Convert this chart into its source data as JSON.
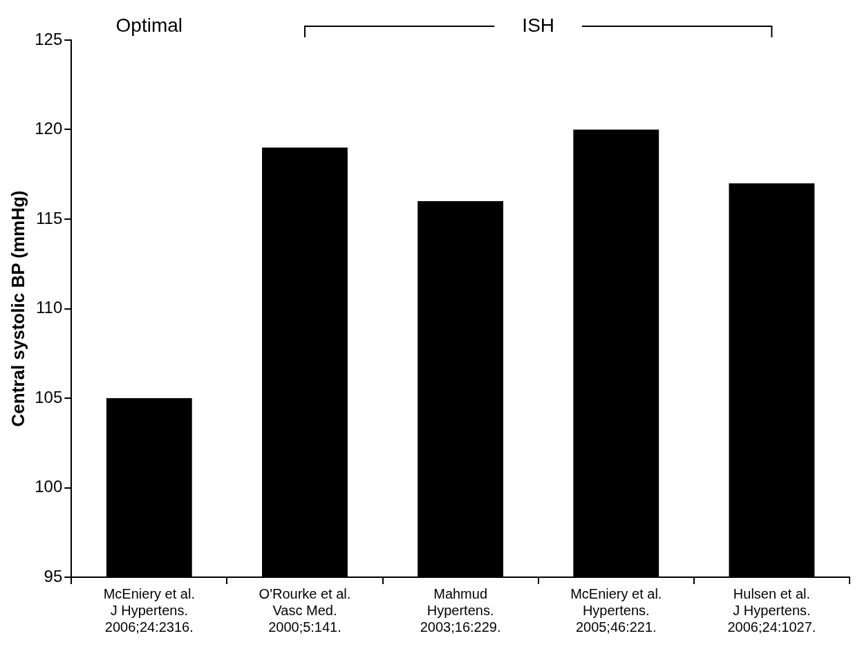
{
  "chart_data": {
    "type": "bar",
    "ylabel": "Central systolic BP (mmHg)",
    "categories": [
      "McEniery et al.\nJ Hypertens.\n2006;24:2316.",
      "O'Rourke et al.\nVasc Med.\n2000;5:141.",
      "Mahmud\nHypertens.\n2003;16:229.",
      "McEniery et al.\nHypertens.\n2005;46:221.",
      "Hulsen et al.\nJ Hypertens.\n2006;24:1027."
    ],
    "values": [
      105,
      119,
      116,
      120,
      117
    ],
    "color": "#000000",
    "ylim": [
      95,
      125
    ],
    "yticks": [
      95,
      100,
      105,
      110,
      115,
      120,
      125
    ],
    "grid": false,
    "legend": false,
    "annotations": [
      "Optimal",
      "ISH"
    ]
  }
}
